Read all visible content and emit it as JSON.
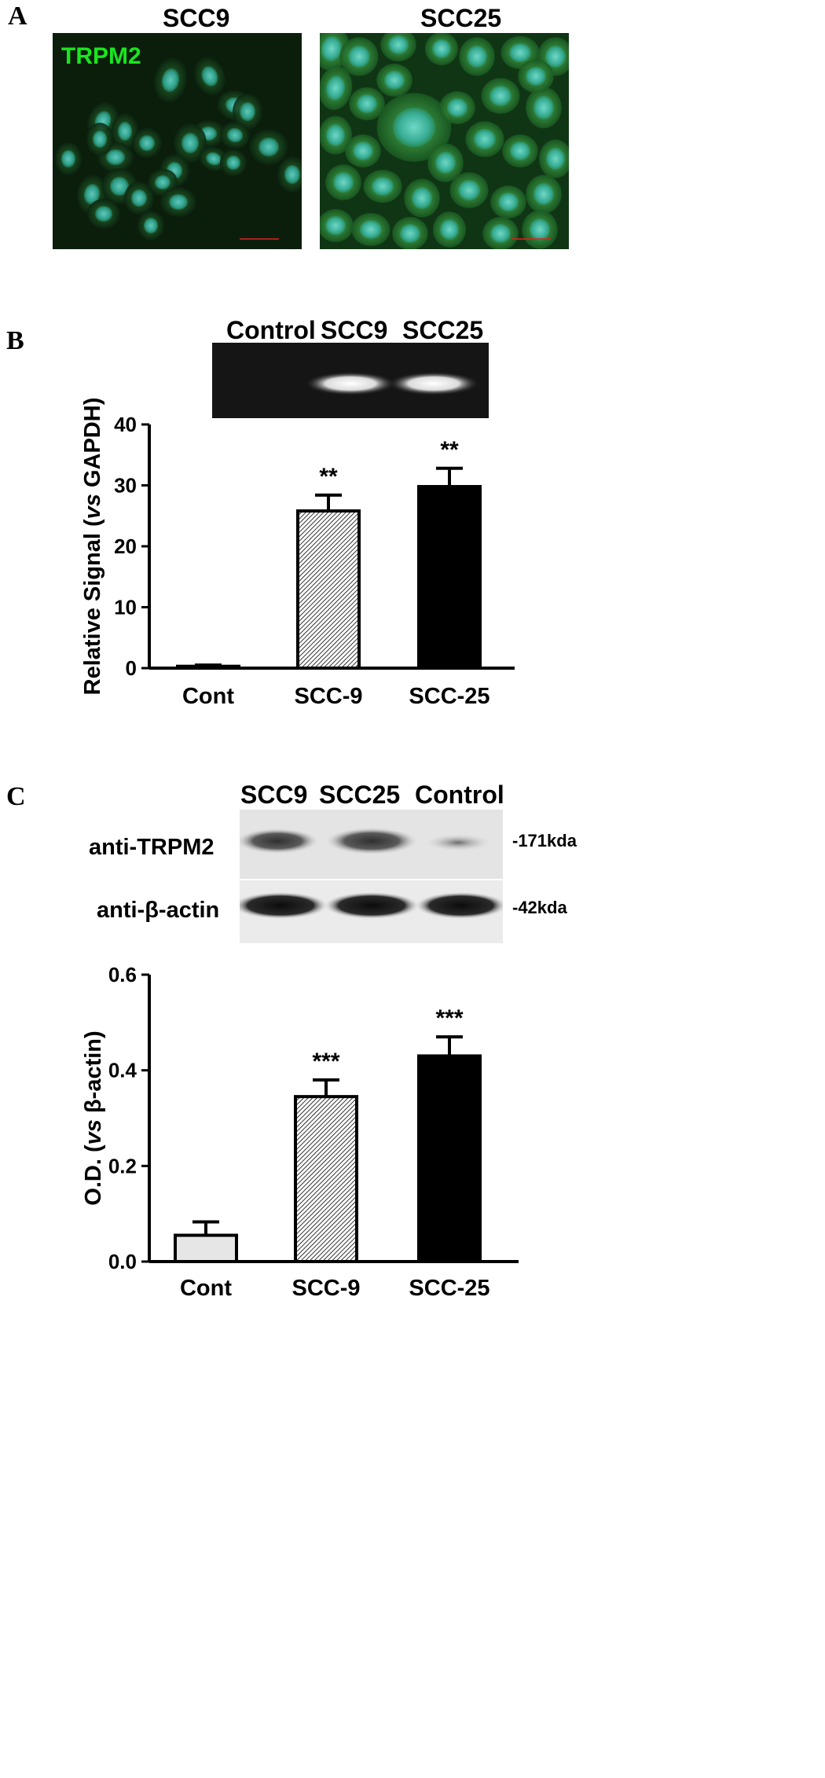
{
  "panels": {
    "a": {
      "letter": "A",
      "images": [
        {
          "title": "SCC9",
          "stain_label": "TRPM2"
        },
        {
          "title": "SCC25",
          "stain_label": ""
        }
      ]
    },
    "b": {
      "letter": "B",
      "gel_lanes": [
        "Control",
        "SCC9",
        "SCC25"
      ]
    },
    "c": {
      "letter": "C",
      "blot_lanes": [
        "SCC9",
        "SCC25",
        "Control"
      ],
      "blot_rows": [
        {
          "label": "anti-TRPM2",
          "size": "-171kda"
        },
        {
          "label": "anti-β-actin",
          "size": "-42kda"
        }
      ]
    }
  },
  "colors": {
    "stain_green": "#19e61e",
    "scale_bar_red": "#e02020",
    "bar_cont_c": "#e6e6e6",
    "bar_scc25": "#000000"
  },
  "chart_data": [
    {
      "type": "bar",
      "categories": [
        "Cont",
        "SCC-9",
        "SCC-25"
      ],
      "values": [
        0.3,
        25.8,
        29.8
      ],
      "errors": [
        0.2,
        2.6,
        3.0
      ],
      "significance": [
        "",
        "**",
        "**"
      ],
      "ylabel_prefix": "Relative Signal (",
      "ylabel_italic": "vs",
      "ylabel_suffix": " GAPDH)",
      "ylim": [
        0,
        40
      ],
      "yticks": [
        0,
        10,
        20,
        30,
        40
      ],
      "fills": [
        "white",
        "hatch",
        "black"
      ]
    },
    {
      "type": "bar",
      "categories": [
        "Cont",
        "SCC-9",
        "SCC-25"
      ],
      "values": [
        0.055,
        0.345,
        0.43
      ],
      "errors": [
        0.028,
        0.035,
        0.04
      ],
      "significance": [
        "",
        "***",
        "***"
      ],
      "ylabel_prefix": "O.D. (",
      "ylabel_italic": "vs",
      "ylabel_suffix": " β-actin)",
      "ylim": [
        0,
        0.6
      ],
      "yticks": [
        0.0,
        0.2,
        0.4,
        0.6
      ],
      "ytick_labels": [
        "0.0",
        "0.2",
        "0.4",
        "0.6"
      ],
      "fills": [
        "light",
        "hatch",
        "black"
      ]
    }
  ]
}
